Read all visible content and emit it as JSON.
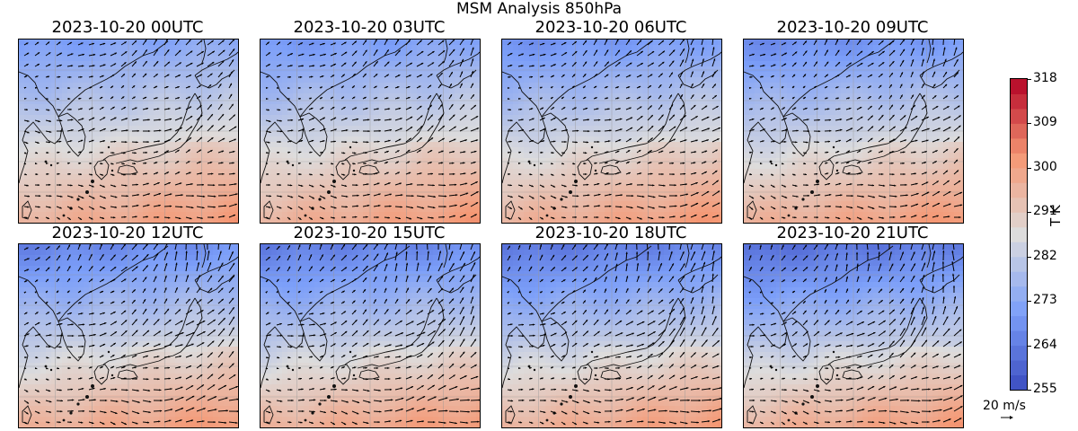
{
  "chart_data": {
    "type": "heatmap",
    "title": "MSM Analysis 850hPa",
    "panels": [
      {
        "title": "2023-10-20 00UTC",
        "cold_shift": 0.0,
        "wind_turn": 0
      },
      {
        "title": "2023-10-20 03UTC",
        "cold_shift": 0.05,
        "wind_turn": 5
      },
      {
        "title": "2023-10-20 06UTC",
        "cold_shift": 0.1,
        "wind_turn": 10
      },
      {
        "title": "2023-10-20 09UTC",
        "cold_shift": 0.15,
        "wind_turn": 15
      },
      {
        "title": "2023-10-20 12UTC",
        "cold_shift": 0.22,
        "wind_turn": 25
      },
      {
        "title": "2023-10-20 15UTC",
        "cold_shift": 0.28,
        "wind_turn": 30
      },
      {
        "title": "2023-10-20 18UTC",
        "cold_shift": 0.33,
        "wind_turn": 35
      },
      {
        "title": "2023-10-20 21UTC",
        "cold_shift": 0.4,
        "wind_turn": 40
      }
    ],
    "colorbar": {
      "label": "T K",
      "min": 255,
      "max": 318,
      "ticks": [
        255,
        264,
        273,
        282,
        291,
        300,
        309,
        318
      ],
      "levels": 21,
      "colormap": "coolwarm"
    },
    "quiver_key": {
      "label": "20 m/s",
      "value": 20,
      "units": "m/s"
    },
    "grid": true
  }
}
